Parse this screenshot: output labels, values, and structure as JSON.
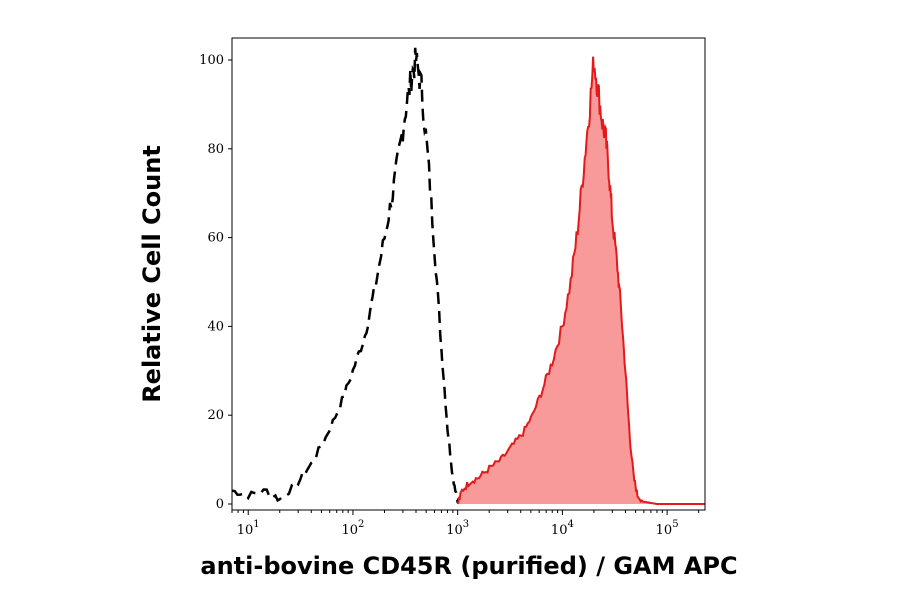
{
  "chart_data": {
    "type": "area",
    "title": "",
    "xlabel": "anti-bovine CD45R (purified) / GAM APC",
    "ylabel": "Relative Cell Count",
    "xscale": "log",
    "xlim": [
      7,
      230000
    ],
    "ylim": [
      0,
      100
    ],
    "x_ticks": [
      {
        "base": "10",
        "exp": "1",
        "value": 10
      },
      {
        "base": "10",
        "exp": "2",
        "value": 100
      },
      {
        "base": "10",
        "exp": "3",
        "value": 1000
      },
      {
        "base": "10",
        "exp": "4",
        "value": 10000
      },
      {
        "base": "10",
        "exp": "5",
        "value": 100000
      }
    ],
    "y_ticks": [
      "0",
      "20",
      "40",
      "60",
      "80",
      "100"
    ],
    "grid": false,
    "legend": "none",
    "series": [
      {
        "style": "dashed-outline",
        "color": "#000000",
        "x": [
          7,
          10,
          15,
          20,
          30,
          40,
          55,
          75,
          100,
          130,
          160,
          200,
          240,
          280,
          320,
          360,
          400,
          450,
          520,
          600,
          700,
          800,
          900,
          1000,
          1100
        ],
        "y": [
          3,
          2,
          3,
          1,
          5,
          9,
          15,
          22,
          30,
          38,
          48,
          60,
          70,
          80,
          89,
          96,
          100,
          94,
          78,
          58,
          35,
          17,
          6,
          1,
          0
        ]
      },
      {
        "style": "filled",
        "color": "#e31a1c",
        "fill": "#f99a9a",
        "x": [
          1000,
          1100,
          1300,
          1600,
          2000,
          2600,
          3300,
          4200,
          5200,
          6500,
          8000,
          10000,
          12000,
          14000,
          16000,
          18000,
          20000,
          22000,
          24000,
          26000,
          28000,
          30000,
          33000,
          36000,
          40000,
          44000,
          48000,
          52000,
          60000,
          80000,
          120000,
          230000
        ],
        "y": [
          0,
          3,
          5,
          6,
          8,
          10,
          13,
          16,
          20,
          26,
          32,
          40,
          50,
          62,
          76,
          88,
          100,
          93,
          86,
          82,
          74,
          64,
          55,
          45,
          30,
          15,
          6,
          2,
          0.5,
          0,
          0,
          0
        ]
      }
    ]
  }
}
